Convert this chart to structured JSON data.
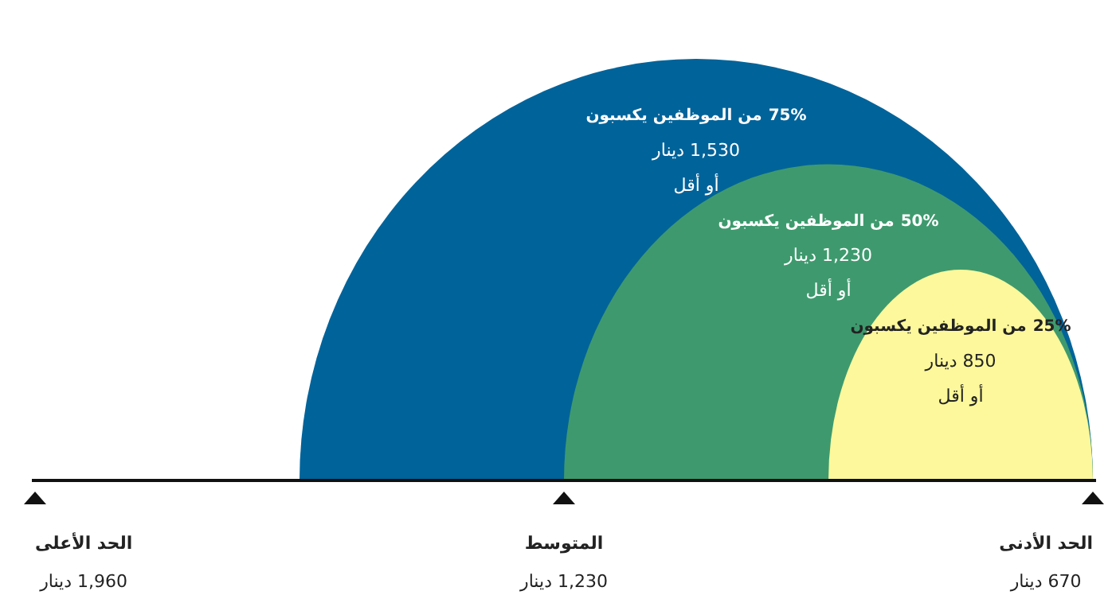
{
  "chart_data": {
    "type": "other",
    "categories": [
      "من الموظفين يكسبون\n1,530 دينار\nأو أقل",
      "من الموظفين يكسبون\n1,230 دينار\nأو أقل",
      "من الموظفين يكسبون\n850 دينار\nأو أقل"
    ],
    "values": [
      75,
      50,
      25
    ],
    "value_labels": [
      "75%",
      "50%",
      "25%"
    ],
    "colors": [
      "#00639a",
      "#3e9a6e",
      "#fcf89b"
    ],
    "annotations": [
      "الحد الأعلى\n1,960 دينار",
      "المتوسط\n1,230 دينار",
      "الحد الأدنى\n670 دينار"
    ]
  }
}
